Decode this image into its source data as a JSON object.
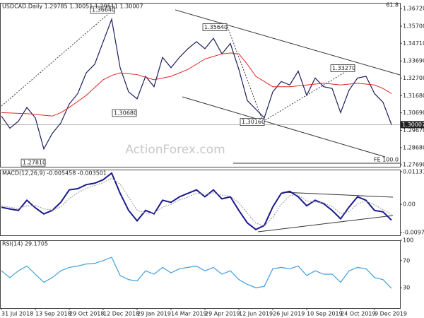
{
  "chart_data": [
    {
      "type": "line",
      "title": "USDCAD.Daily 1.29785 1.30051 1.29511 1.30007",
      "ylim": [
        1.2757,
        1.3705
      ],
      "yticks": [
        {
          "value": 1.3672,
          "label": "1.36720"
        },
        {
          "value": 1.357,
          "label": "1.35700"
        },
        {
          "value": 1.3471,
          "label": "1.34710"
        },
        {
          "value": 1.3369,
          "label": "1.33690"
        },
        {
          "value": 1.327,
          "label": "1.32700"
        },
        {
          "value": 1.3168,
          "label": "1.31680"
        },
        {
          "value": 1.3069,
          "label": "1.30690"
        },
        {
          "value": 1.2967,
          "label": "1.29670"
        },
        {
          "value": 1.2868,
          "label": "1.28680"
        },
        {
          "value": 1.2769,
          "label": "1.27690"
        }
      ],
      "grid": false,
      "series": [
        {
          "color": "#1c1c5c",
          "values": [
            1.305,
            1.298,
            1.302,
            1.31,
            1.304,
            1.286,
            1.295,
            1.301,
            1.312,
            1.318,
            1.33,
            1.335,
            1.348,
            1.361,
            1.333,
            1.319,
            1.315,
            1.328,
            1.322,
            1.339,
            1.333,
            1.339,
            1.344,
            1.348,
            1.344,
            1.35,
            1.341,
            1.347,
            1.332,
            1.314,
            1.309,
            1.304,
            1.319,
            1.325,
            1.323,
            1.331,
            1.317,
            1.327,
            1.322,
            1.321,
            1.307,
            1.32,
            1.327,
            1.328,
            1.318,
            1.313,
            1.30007
          ]
        },
        {
          "color": "#e02424",
          "values": [
            1.307,
            1.3068,
            1.3066,
            1.3064,
            1.306,
            1.3055,
            1.305,
            1.307,
            1.31,
            1.3135,
            1.317,
            1.3215,
            1.326,
            1.3285,
            1.33,
            1.3295,
            1.329,
            1.3275,
            1.326,
            1.327,
            1.328,
            1.33,
            1.332,
            1.335,
            1.338,
            1.3395,
            1.341,
            1.3415,
            1.341,
            1.335,
            1.328,
            1.325,
            1.322,
            1.322,
            1.322,
            1.3225,
            1.323,
            1.3235,
            1.324,
            1.3235,
            1.323,
            1.3235,
            1.324,
            1.3235,
            1.323,
            1.321,
            1.318
          ]
        }
      ],
      "last_price": 1.30007,
      "annotations": [
        {
          "value": 1.3664,
          "label": "1.36640"
        },
        {
          "value": 1.3564,
          "label": "1.35640"
        },
        {
          "value": 1.3327,
          "label": "1.33270"
        },
        {
          "value": 1.3068,
          "label": "1.30680"
        },
        {
          "value": 1.3016,
          "label": "1.30160"
        },
        {
          "value": 1.2781,
          "label": "1.27810"
        }
      ],
      "texts": [
        "61.8",
        "FE 100.0",
        "ActionForex.com"
      ]
    },
    {
      "type": "line",
      "title": "MACD(12,26,9) -0.005458 -0.003501",
      "ylim": [
        -0.0107,
        0.012
      ],
      "yticks": [
        0.011313,
        {
          "value": 0,
          "label": "0.00"
        },
        -0.009729
      ],
      "grid": false,
      "series": [
        {
          "color": "#1a1a8c",
          "values": [
            -0.001,
            -0.0016,
            -0.0021,
            0.0014,
            -0.0012,
            -0.0033,
            -0.0021,
            0.0007,
            0.005,
            0.0054,
            0.0068,
            0.0073,
            0.0085,
            0.0108,
            0.0038,
            -0.0021,
            -0.0057,
            -0.0021,
            -0.0033,
            0.0014,
            0.0007,
            0.0026,
            0.0038,
            0.005,
            0.0026,
            0.005,
            0.0019,
            0.0026,
            -0.0021,
            -0.0064,
            -0.0087,
            -0.0073,
            -0.0009,
            0.0038,
            0.0045,
            0.0026,
            -0.0005,
            0.0014,
            0.0002,
            -0.0021,
            -0.005,
            -0.0009,
            0.0026,
            0.0014,
            -0.0021,
            -0.0026,
            -0.005458
          ]
        },
        {
          "color": "#9a9a9a",
          "values": [
            -0.0005,
            -0.001,
            -0.0015,
            -0.0005,
            -0.0004,
            -0.0015,
            -0.002,
            -0.0008,
            0.002,
            0.004,
            0.0055,
            0.0065,
            0.0075,
            0.009,
            0.007,
            0.0025,
            -0.002,
            -0.003,
            -0.003,
            -0.001,
            0,
            0.0015,
            0.0025,
            0.0038,
            0.0035,
            0.004,
            0.0032,
            0.0028,
            0.0005,
            -0.003,
            -0.0065,
            -0.0075,
            -0.0045,
            0,
            0.003,
            0.0032,
            0.0012,
            0.0008,
            0.0006,
            -0.0008,
            -0.0032,
            -0.0025,
            0.0002,
            0.0012,
            -0.0002,
            -0.0018,
            -0.003501
          ]
        }
      ]
    },
    {
      "type": "line",
      "title": "RSI(14) 29.1705",
      "ylim": [
        0,
        100
      ],
      "yticks": [
        100,
        70,
        30
      ],
      "grid": false,
      "categories": [
        "31 Jul 2018",
        null,
        null,
        null,
        "13 Sep 2018",
        null,
        null,
        null,
        "29 Oct 2018",
        null,
        null,
        null,
        "12 Dec 2018",
        null,
        null,
        null,
        "29 Jan 2019",
        null,
        null,
        null,
        "14 Mar 2019",
        null,
        null,
        null,
        "29 Apr 2019",
        null,
        null,
        null,
        "12 Jun 2019",
        null,
        null,
        null,
        "26 Jul 2019",
        null,
        null,
        null,
        "10 Sep 2019",
        null,
        null,
        null,
        "24 Oct 2019",
        null,
        null,
        null,
        "9 Dec 2019",
        null,
        null
      ],
      "series": [
        {
          "color": "#3d9ede",
          "values": [
            55,
            45,
            55,
            62,
            50,
            38,
            45,
            55,
            60,
            62,
            65,
            66,
            70,
            75,
            48,
            42,
            40,
            55,
            50,
            60,
            52,
            58,
            60,
            62,
            55,
            60,
            50,
            55,
            42,
            35,
            30,
            32,
            58,
            60,
            58,
            62,
            48,
            55,
            50,
            50,
            38,
            55,
            60,
            58,
            45,
            42,
            29.1705
          ]
        }
      ]
    }
  ]
}
